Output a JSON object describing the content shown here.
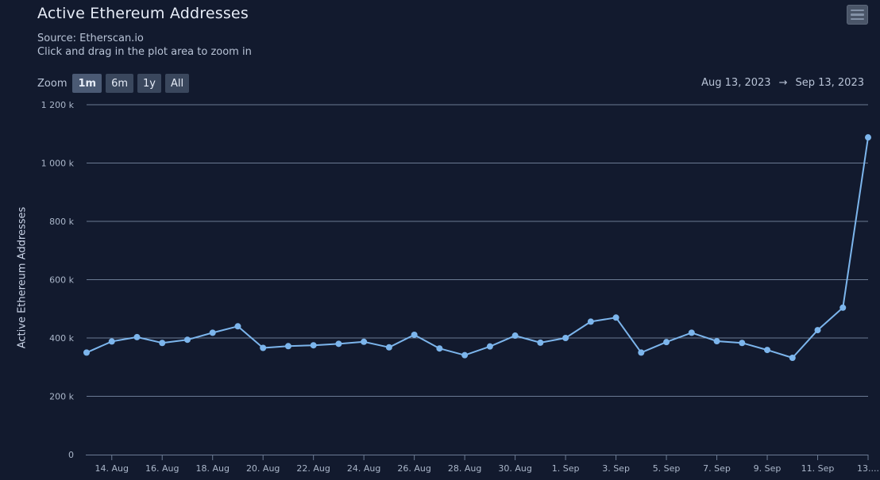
{
  "header": {
    "title": "Active Ethereum Addresses",
    "source": "Source: Etherscan.io",
    "hint": "Click and drag in the plot area to zoom in"
  },
  "zoom": {
    "label": "Zoom",
    "buttons": [
      {
        "label": "1m",
        "active": true
      },
      {
        "label": "6m",
        "active": false
      },
      {
        "label": "1y",
        "active": false
      },
      {
        "label": "All",
        "active": false
      }
    ]
  },
  "range": {
    "from": "Aug 13, 2023",
    "arrow": "→",
    "to": "Sep 13, 2023"
  },
  "colors": {
    "background": "#121a2e",
    "series": "#7cb5ec",
    "grid": "#6b7a93"
  },
  "chart_data": {
    "type": "line",
    "title": "Active Ethereum Addresses",
    "subtitle": "Source: Etherscan.io",
    "xlabel": "",
    "ylabel": "Active Ethereum Addresses",
    "ylim": [
      0,
      1200000
    ],
    "y_ticks": [
      0,
      200000,
      400000,
      600000,
      800000,
      1000000,
      1200000
    ],
    "y_tick_labels": [
      "0",
      "200 k",
      "400 k",
      "600 k",
      "800 k",
      "1 000 k",
      "1 200 k"
    ],
    "x_tick_labels": [
      "14. Aug",
      "16. Aug",
      "18. Aug",
      "20. Aug",
      "22. Aug",
      "24. Aug",
      "26. Aug",
      "28. Aug",
      "30. Aug",
      "1. Sep",
      "3. Sep",
      "5. Sep",
      "7. Sep",
      "9. Sep",
      "11. Sep",
      "13...."
    ],
    "grid": true,
    "legend": "none",
    "x": [
      "2023-08-13",
      "2023-08-14",
      "2023-08-15",
      "2023-08-16",
      "2023-08-17",
      "2023-08-18",
      "2023-08-19",
      "2023-08-20",
      "2023-08-21",
      "2023-08-22",
      "2023-08-23",
      "2023-08-24",
      "2023-08-25",
      "2023-08-26",
      "2023-08-27",
      "2023-08-28",
      "2023-08-29",
      "2023-08-30",
      "2023-08-31",
      "2023-09-01",
      "2023-09-02",
      "2023-09-03",
      "2023-09-04",
      "2023-09-05",
      "2023-09-06",
      "2023-09-07",
      "2023-09-08",
      "2023-09-09",
      "2023-09-10",
      "2023-09-11",
      "2023-09-12",
      "2023-09-13"
    ],
    "series": [
      {
        "values": [
          350000,
          388000,
          403000,
          383000,
          394000,
          418000,
          440000,
          366000,
          372000,
          375000,
          380000,
          387000,
          368000,
          411000,
          364000,
          341000,
          371000,
          408000,
          384000,
          400000,
          456000,
          470000,
          350000,
          386000,
          418000,
          389000,
          383000,
          359000,
          332000,
          427000,
          504000,
          1088000
        ]
      }
    ]
  }
}
